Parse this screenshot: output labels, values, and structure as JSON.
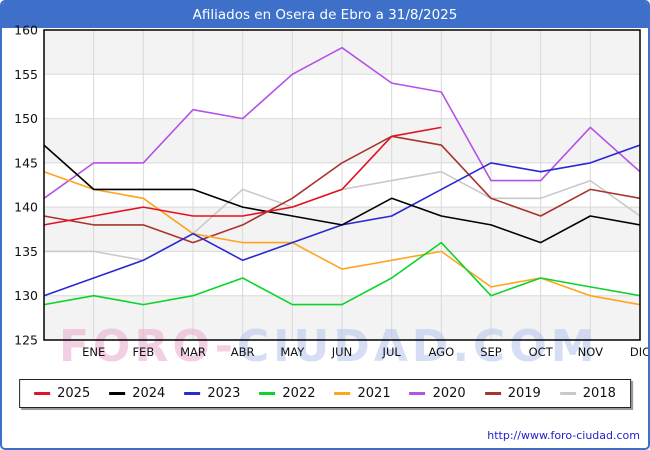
{
  "window": {
    "title": "Afiliados en Osera de Ebro a 31/8/2025"
  },
  "watermark": {
    "part1": "FORO-",
    "part2": "CIUDAD.COM"
  },
  "footer_url": "http://www.foro-ciudad.com",
  "colors": {
    "frame": "#3e70c9",
    "titlebar_bg": "#3e70c9",
    "titlebar_text": "#ffffff",
    "plot_border": "#000000",
    "grid": "#d9d9d9",
    "band": "#f3f3f3",
    "tick_text": "#111111",
    "url_text": "#2222cc",
    "watermark_pink": "rgba(233,167,204,0.55)",
    "watermark_blue": "rgba(178,195,235,0.55)"
  },
  "chart_data": {
    "type": "line",
    "title": "Afiliados en Osera de Ebro a 31/8/2025",
    "xlabel": "",
    "ylabel": "",
    "ylim": [
      125,
      160
    ],
    "yticks": [
      125,
      130,
      135,
      140,
      145,
      150,
      155,
      160
    ],
    "grid": true,
    "legend_position": "bottom",
    "categories": [
      "",
      "ENE",
      "FEB",
      "MAR",
      "ABR",
      "MAY",
      "JUN",
      "JUL",
      "AGO",
      "SEP",
      "OCT",
      "NOV",
      "DIC"
    ],
    "note": "First value of each series sits on the left axis edge before the ENE gridline. 2025 data ends at AGO (31/8/2025).",
    "series": [
      {
        "name": "2025",
        "color": "#e31123",
        "values": [
          138,
          139,
          140,
          139,
          139,
          140,
          142,
          148,
          149
        ]
      },
      {
        "name": "2024",
        "color": "#000000",
        "values": [
          147,
          142,
          142,
          142,
          140,
          139,
          138,
          141,
          139,
          138,
          136,
          139,
          138
        ]
      },
      {
        "name": "2023",
        "color": "#2a2ad0",
        "values": [
          130,
          132,
          134,
          137,
          134,
          136,
          138,
          139,
          142,
          145,
          144,
          145,
          147
        ]
      },
      {
        "name": "2022",
        "color": "#0bd42a",
        "values": [
          129,
          130,
          129,
          130,
          132,
          129,
          129,
          132,
          136,
          130,
          132,
          131,
          130
        ]
      },
      {
        "name": "2021",
        "color": "#ffa41e",
        "values": [
          144,
          142,
          141,
          137,
          136,
          136,
          133,
          134,
          135,
          131,
          132,
          130,
          129
        ]
      },
      {
        "name": "2020",
        "color": "#b353e6",
        "values": [
          141,
          145,
          145,
          151,
          150,
          155,
          158,
          154,
          153,
          143,
          143,
          149,
          144
        ]
      },
      {
        "name": "2019",
        "color": "#a8342e",
        "values": [
          139,
          138,
          138,
          136,
          138,
          141,
          145,
          148,
          147,
          141,
          139,
          142,
          141
        ]
      },
      {
        "name": "2018",
        "color": "#c9c9c9",
        "values": [
          135,
          135,
          134,
          137,
          142,
          140,
          142,
          143,
          144,
          141,
          141,
          143,
          139
        ]
      }
    ]
  }
}
